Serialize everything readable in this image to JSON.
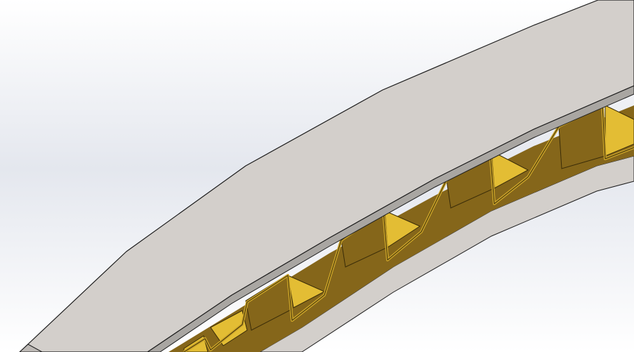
{
  "scene": {
    "type": "3d-cad-render",
    "subject": "curved-sandwich-panel",
    "colors": {
      "background_top": "#ffffff",
      "background_mid": "#e4e7ee",
      "background_bottom": "#ffffff",
      "skin_face": "#d3cfcb",
      "skin_edge": "#a9a6a2",
      "skin_outline": "#1c1c1c",
      "core_light": "#e3bd34",
      "core_dark": "#85661a",
      "core_shadow": "#5c4710"
    }
  }
}
